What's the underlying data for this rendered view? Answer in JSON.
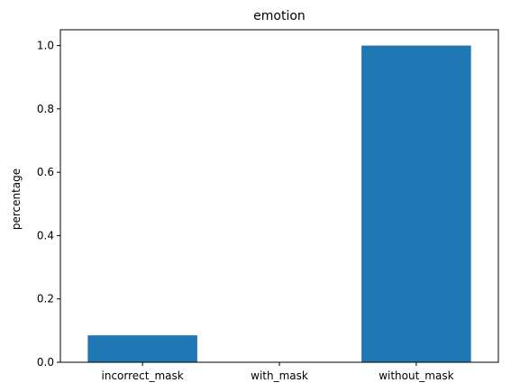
{
  "chart_data": {
    "type": "bar",
    "title": "emotion",
    "xlabel": "",
    "ylabel": "percentage",
    "categories": [
      "incorrect_mask",
      "with_mask",
      "without_mask"
    ],
    "values": [
      0.085,
      0.0,
      1.0
    ],
    "ylim": [
      0.0,
      1.05
    ],
    "yticks": [
      0.0,
      0.2,
      0.4,
      0.6,
      0.8,
      1.0
    ],
    "ytick_labels": [
      "0.0",
      "0.2",
      "0.4",
      "0.6",
      "0.8",
      "1.0"
    ],
    "bar_color": "#1f77b4",
    "grid": false,
    "legend": "none"
  }
}
